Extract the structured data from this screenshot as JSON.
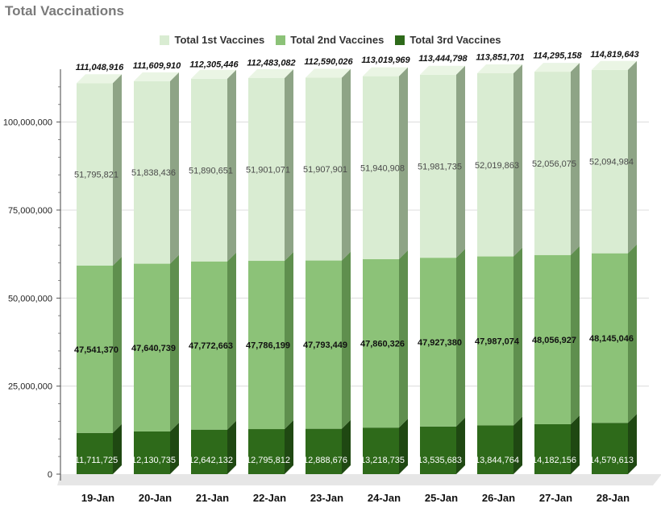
{
  "title": "Total Vaccinations",
  "legend": [
    {
      "label": "Total 1st Vaccines",
      "color": "#d9ecd2"
    },
    {
      "label": "Total 2nd Vaccines",
      "color": "#8cc278"
    },
    {
      "label": "Total 3rd Vaccines",
      "color": "#2e6a1a"
    }
  ],
  "chart_data": {
    "type": "bar",
    "stacked": true,
    "categories": [
      "19-Jan",
      "20-Jan",
      "21-Jan",
      "22-Jan",
      "23-Jan",
      "24-Jan",
      "25-Jan",
      "26-Jan",
      "27-Jan",
      "28-Jan"
    ],
    "series": [
      {
        "name": "Total 3rd Vaccines",
        "values": [
          11711725,
          12130735,
          12642132,
          12795812,
          12888676,
          13218735,
          13535683,
          13844764,
          14182156,
          14579613
        ]
      },
      {
        "name": "Total 2nd Vaccines",
        "values": [
          47541370,
          47640739,
          47772663,
          47786199,
          47793449,
          47860326,
          47927380,
          47987074,
          48056927,
          48145046
        ]
      },
      {
        "name": "Total 1st Vaccines",
        "values": [
          51795821,
          51838436,
          51890651,
          51901071,
          51907901,
          51940908,
          51981735,
          52019863,
          52056075,
          52094984
        ]
      }
    ],
    "segment_labels": [
      [
        "11,711,725",
        "12,130,735",
        "12,642,132",
        "12,795,812",
        "12,888,676",
        "13,218,735",
        "13,535,683",
        "13,844,764",
        "14,182,156",
        "14,579,613"
      ],
      [
        "47,541,370",
        "47,640,739",
        "47,772,663",
        "47,786,199",
        "47,793,449",
        "47,860,326",
        "47,927,380",
        "47,987,074",
        "48,056,927",
        "48,145,046"
      ],
      [
        "51,795,821",
        "51,838,436",
        "51,890,651",
        "51,901,071",
        "51,907,901",
        "51,940,908",
        "51,981,735",
        "52,019,863",
        "52,056,075",
        "52,094,984"
      ]
    ],
    "totals": [
      111048916,
      111609910,
      112305446,
      112483082,
      112590026,
      113019969,
      113444798,
      113851701,
      114295158,
      114819643
    ],
    "total_labels": [
      "111,048,916",
      "111,609,910",
      "112,305,446",
      "112,483,082",
      "112,590,026",
      "113,019,969",
      "113,444,798",
      "113,851,701",
      "114,295,158",
      "114,819,643"
    ],
    "yticks": [
      0,
      25000000,
      50000000,
      75000000,
      100000000
    ],
    "ytick_labels": [
      "0",
      "25,000,000",
      "50,000,000",
      "75,000,000",
      "100,000,000"
    ],
    "ylim": [
      0,
      115000000
    ],
    "grid": true,
    "legend_position": "top-center",
    "colors": {
      "first": "#d9ecd2",
      "first_side": "#8ea486",
      "first_top": "#eaf5e4",
      "second": "#8cc278",
      "second_side": "#5f8f4e",
      "second_top": "#a9d497",
      "third": "#2e6a1a",
      "third_side": "#1f4812",
      "third_top": "#3f8128"
    }
  }
}
